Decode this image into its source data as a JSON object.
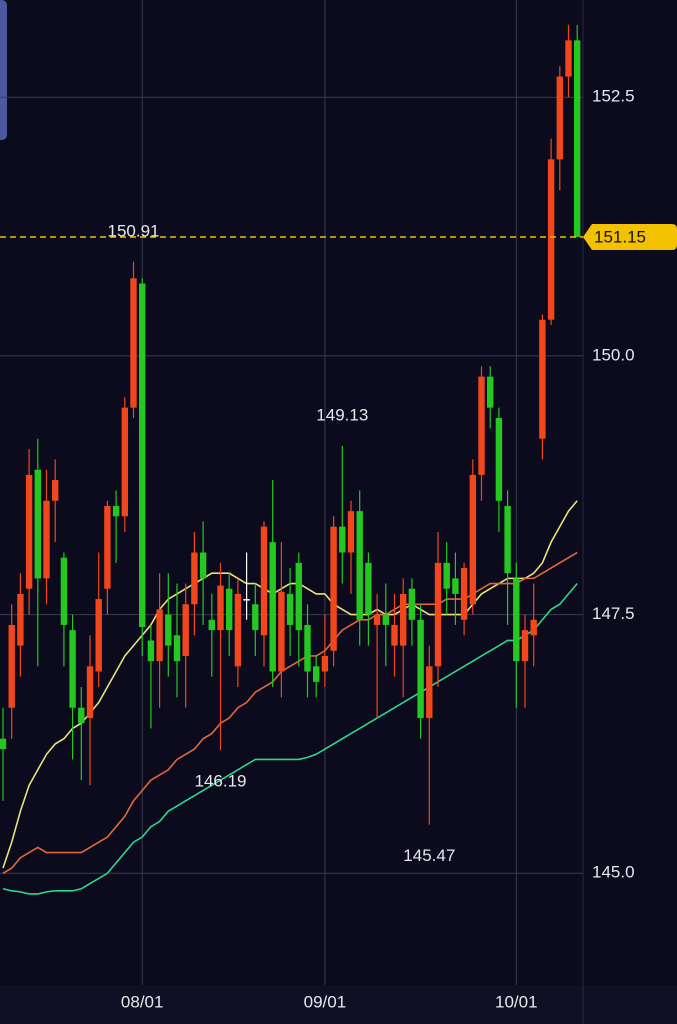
{
  "chart_data": {
    "type": "candlestick",
    "categories": [
      null,
      null,
      null,
      null,
      null,
      null,
      null,
      null,
      null,
      null,
      null,
      null,
      null,
      null,
      null,
      null,
      "08/01",
      null,
      null,
      null,
      null,
      null,
      null,
      null,
      null,
      null,
      null,
      null,
      null,
      null,
      null,
      null,
      null,
      null,
      null,
      null,
      null,
      "09/01",
      null,
      null,
      null,
      null,
      null,
      null,
      null,
      null,
      null,
      null,
      null,
      null,
      null,
      null,
      null,
      null,
      null,
      null,
      null,
      null,
      null,
      "10/01",
      null,
      null,
      null,
      null,
      null,
      null,
      null
    ],
    "open": [
      146.3,
      146.6,
      147.2,
      147.75,
      148.9,
      147.85,
      148.6,
      148.05,
      147.35,
      146.6,
      146.5,
      146.95,
      147.75,
      148.55,
      148.45,
      149.5,
      150.7,
      147.25,
      147.05,
      147.5,
      147.3,
      147.1,
      147.6,
      148.1,
      147.45,
      147.35,
      147.75,
      147.0,
      147.65,
      147.6,
      147.3,
      148.2,
      146.95,
      147.7,
      148.0,
      147.4,
      147.0,
      146.95,
      147.15,
      148.35,
      148.1,
      148.5,
      148.0,
      147.4,
      147.5,
      147.2,
      147.2,
      147.75,
      147.45,
      146.5,
      147.0,
      148.0,
      147.85,
      147.45,
      147.6,
      148.85,
      149.8,
      149.4,
      148.55,
      147.85,
      147.05,
      147.3,
      149.2,
      150.35,
      151.9,
      152.7,
      153.05
    ],
    "high": [
      146.6,
      147.6,
      147.9,
      149.1,
      149.2,
      148.9,
      149.0,
      148.1,
      147.5,
      146.8,
      147.3,
      148.1,
      148.6,
      148.7,
      149.6,
      150.91,
      150.75,
      147.4,
      147.9,
      147.9,
      147.8,
      147.8,
      148.3,
      148.4,
      147.7,
      148.0,
      147.9,
      147.85,
      148.1,
      147.8,
      148.4,
      148.8,
      148.2,
      147.95,
      148.1,
      147.6,
      147.1,
      147.5,
      148.45,
      149.13,
      148.6,
      148.7,
      148.1,
      147.7,
      147.8,
      147.7,
      147.85,
      147.85,
      147.6,
      147.2,
      148.3,
      148.2,
      148.1,
      148.0,
      149.0,
      149.9,
      149.9,
      149.5,
      148.7,
      148.0,
      147.5,
      147.8,
      150.4,
      152.1,
      152.8,
      153.2,
      153.2
    ],
    "low": [
      145.7,
      146.3,
      146.9,
      147.5,
      147.0,
      147.6,
      148.2,
      147.0,
      146.1,
      145.9,
      145.85,
      146.8,
      147.5,
      148.0,
      148.3,
      149.4,
      147.1,
      146.4,
      146.6,
      146.9,
      146.7,
      146.6,
      147.3,
      147.4,
      146.9,
      146.19,
      147.1,
      146.8,
      147.45,
      147.1,
      147.0,
      146.8,
      146.7,
      147.1,
      147.0,
      146.7,
      146.7,
      146.8,
      147.0,
      147.8,
      147.7,
      147.2,
      147.2,
      146.5,
      147.0,
      146.9,
      146.7,
      147.2,
      146.3,
      145.47,
      146.8,
      147.5,
      147.4,
      147.3,
      147.5,
      148.6,
      149.3,
      148.3,
      147.4,
      146.6,
      146.6,
      147.0,
      149.0,
      150.3,
      151.6,
      152.5,
      151.15
    ],
    "close": [
      146.2,
      147.4,
      147.7,
      148.85,
      147.85,
      148.6,
      148.8,
      147.4,
      146.6,
      146.45,
      147.0,
      147.65,
      148.55,
      148.45,
      149.5,
      150.75,
      147.38,
      147.05,
      147.55,
      147.2,
      147.05,
      147.6,
      148.1,
      147.85,
      147.35,
      147.78,
      147.35,
      147.7,
      147.65,
      147.35,
      148.35,
      146.95,
      147.72,
      147.4,
      147.35,
      146.95,
      146.85,
      147.1,
      148.35,
      148.1,
      148.5,
      147.45,
      147.5,
      147.5,
      147.4,
      147.4,
      147.7,
      147.45,
      146.5,
      147.0,
      148.0,
      147.75,
      147.7,
      147.95,
      148.85,
      149.8,
      149.5,
      148.6,
      147.9,
      147.05,
      147.35,
      147.45,
      150.35,
      151.9,
      152.7,
      153.05,
      151.15
    ],
    "up_color": "#f2461c",
    "down_color": "#25c820",
    "flat_color": "#ffffff",
    "series": [
      {
        "color": "#e9e27a",
        "values": [
          145.05,
          145.3,
          145.6,
          145.85,
          146.0,
          146.15,
          146.25,
          146.3,
          146.4,
          146.45,
          146.55,
          146.65,
          146.8,
          146.95,
          147.1,
          147.2,
          147.3,
          147.4,
          147.55,
          147.65,
          147.7,
          147.75,
          147.8,
          147.85,
          147.9,
          147.9,
          147.9,
          147.85,
          147.8,
          147.8,
          147.75,
          147.7,
          147.75,
          147.8,
          147.8,
          147.75,
          147.7,
          147.7,
          147.6,
          147.55,
          147.5,
          147.5,
          147.5,
          147.55,
          147.5,
          147.5,
          147.55,
          147.6,
          147.55,
          147.5,
          147.5,
          147.5,
          147.5,
          147.5,
          147.6,
          147.7,
          147.75,
          147.8,
          147.85,
          147.85,
          147.85,
          147.9,
          148.0,
          148.2,
          148.35,
          148.5,
          148.6
        ]
      },
      {
        "color": "#e2683c",
        "values": [
          145.0,
          145.05,
          145.15,
          145.2,
          145.25,
          145.2,
          145.2,
          145.2,
          145.2,
          145.2,
          145.25,
          145.3,
          145.35,
          145.45,
          145.55,
          145.7,
          145.8,
          145.9,
          145.95,
          146.0,
          146.1,
          146.15,
          146.2,
          146.3,
          146.35,
          146.45,
          146.5,
          146.6,
          146.65,
          146.75,
          146.8,
          146.85,
          146.95,
          147.0,
          147.05,
          147.1,
          147.1,
          147.15,
          147.25,
          147.35,
          147.4,
          147.45,
          147.45,
          147.5,
          147.5,
          147.55,
          147.6,
          147.6,
          147.6,
          147.6,
          147.6,
          147.65,
          147.65,
          147.65,
          147.7,
          147.75,
          147.8,
          147.8,
          147.8,
          147.8,
          147.85,
          147.85,
          147.9,
          147.95,
          148.0,
          148.05,
          148.1
        ]
      },
      {
        "color": "#2ed68c",
        "values": [
          144.85,
          144.83,
          144.82,
          144.8,
          144.8,
          144.82,
          144.83,
          144.83,
          144.83,
          144.85,
          144.9,
          144.95,
          145.0,
          145.1,
          145.2,
          145.3,
          145.35,
          145.45,
          145.5,
          145.6,
          145.65,
          145.7,
          145.75,
          145.8,
          145.85,
          145.9,
          145.95,
          146.0,
          146.05,
          146.1,
          146.1,
          146.1,
          146.1,
          146.1,
          146.1,
          146.12,
          146.15,
          146.2,
          146.25,
          146.3,
          146.35,
          146.4,
          146.45,
          146.5,
          146.55,
          146.6,
          146.65,
          146.7,
          146.75,
          146.8,
          146.85,
          146.9,
          146.95,
          147.0,
          147.05,
          147.1,
          147.15,
          147.2,
          147.25,
          147.25,
          147.3,
          147.35,
          147.45,
          147.55,
          147.6,
          147.7,
          147.8
        ]
      }
    ],
    "annotations": [
      150.91,
      149.13,
      146.19,
      145.47
    ],
    "last_price_line": true,
    "last_price_color": "#f2c200",
    "ylim": [
      143.92,
      153.44
    ],
    "yticks": [
      {
        "value": 145,
        "label": "145.0"
      },
      147.5,
      {
        "value": 150,
        "label": "150.0"
      },
      152.5
    ],
    "grid": true
  }
}
